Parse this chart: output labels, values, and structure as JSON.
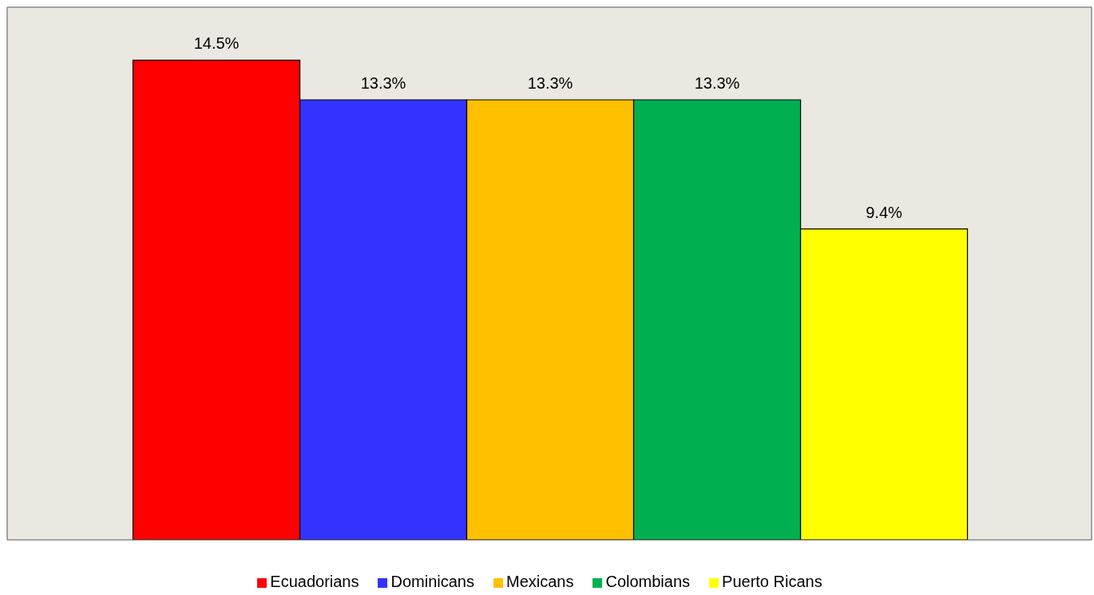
{
  "chart_data": {
    "type": "bar",
    "categories": [
      null
    ],
    "series": [
      {
        "name": "Ecuadorians",
        "color": "#ff0000",
        "values": [
          14.5
        ],
        "value_labels": [
          "14.5%"
        ]
      },
      {
        "name": "Dominicans",
        "color": "#3333ff",
        "values": [
          13.3
        ],
        "value_labels": [
          "13.3%"
        ]
      },
      {
        "name": "Mexicans",
        "color": "#ffc000",
        "values": [
          13.3
        ],
        "value_labels": [
          "13.3%"
        ]
      },
      {
        "name": "Colombians",
        "color": "#00b050",
        "values": [
          13.3
        ],
        "value_labels": [
          "13.3%"
        ]
      },
      {
        "name": "Puerto Ricans",
        "color": "#ffff00",
        "values": [
          9.4
        ],
        "value_labels": [
          "9.4%"
        ]
      }
    ],
    "ylim": [
      0,
      16.1
    ],
    "grid": false,
    "legend": "bottom"
  }
}
